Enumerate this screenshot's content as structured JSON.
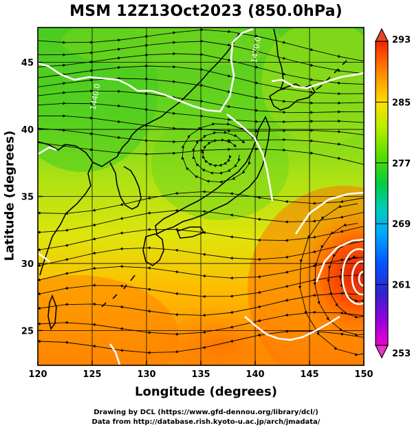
{
  "title": "MSM 12Z13Oct2023 (850.0hPa)",
  "x_axis": {
    "label": "Longitude (degrees)",
    "ticks": [
      {
        "value": 120,
        "label": "120"
      },
      {
        "value": 125,
        "label": "125"
      },
      {
        "value": 130,
        "label": "130"
      },
      {
        "value": 135,
        "label": "135"
      },
      {
        "value": 140,
        "label": "140"
      },
      {
        "value": 145,
        "label": "145"
      },
      {
        "value": 150,
        "label": "150"
      }
    ],
    "range": [
      120,
      150
    ]
  },
  "y_axis": {
    "label": "Latitude (degrees)",
    "ticks": [
      {
        "value": 25,
        "label": "25"
      },
      {
        "value": 30,
        "label": "30"
      },
      {
        "value": 35,
        "label": "35"
      },
      {
        "value": 40,
        "label": "40"
      },
      {
        "value": 45,
        "label": "45"
      }
    ],
    "range": [
      22.4,
      47.6
    ]
  },
  "colorbar": {
    "ticks": [
      {
        "value": 293,
        "label": "293"
      },
      {
        "value": 285,
        "label": "285"
      },
      {
        "value": 277,
        "label": "277"
      },
      {
        "value": 269,
        "label": "269"
      },
      {
        "value": 261,
        "label": "261"
      },
      {
        "value": 253,
        "label": "253"
      }
    ],
    "range": [
      253,
      293
    ],
    "colors": [
      "#ee00cc",
      "#8800dd",
      "#2222cc",
      "#0066ff",
      "#00bbff",
      "#00ddaa",
      "#00cc44",
      "#66dd00",
      "#ccee00",
      "#ffcc00",
      "#ff8800",
      "#ff4400",
      "#ee2200"
    ]
  },
  "contour_labels": [
    {
      "text": "1440.0",
      "lon": 125.5,
      "lat": 42.4
    },
    {
      "text": "1470.0",
      "lon": 140.3,
      "lat": 45.9
    }
  ],
  "credits": {
    "line1": "Drawing by DCL (https://www.gfd-dennou.org/library/dcl/)",
    "line2": "Data from http://database.rish.kyoto-u.ac.jp/arch/jmadata/"
  }
}
